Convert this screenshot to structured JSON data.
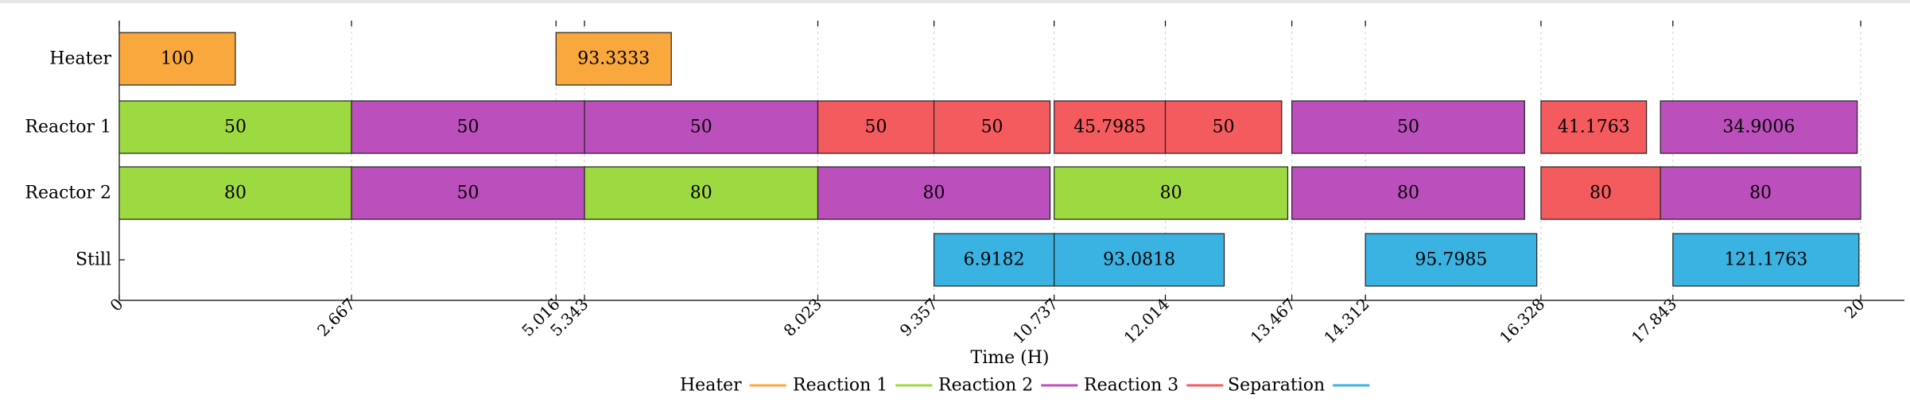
{
  "chart_data": {
    "type": "gantt",
    "xlabel": "Time (H)",
    "xlim": [
      0,
      20
    ],
    "xticks": [
      "0",
      "2.667",
      "5.016",
      "5.343",
      "8.023",
      "9.357",
      "10.737",
      "12.014",
      "13.467",
      "14.312",
      "16.328",
      "17.843",
      "20"
    ],
    "rows": [
      "Heater",
      "Reactor 1",
      "Reactor 2",
      "Still"
    ],
    "legend": [
      {
        "name": "Heater",
        "color": "#f9a83e"
      },
      {
        "name": "Reaction 1",
        "color": "#9dd940"
      },
      {
        "name": "Reaction 2",
        "color": "#bb4fbb"
      },
      {
        "name": "Reaction 3",
        "color": "#f45b5f"
      },
      {
        "name": "Separation",
        "color": "#3bb3e2"
      }
    ],
    "tasks": [
      {
        "row": "Heater",
        "task": "Heater",
        "start": 0,
        "end": 1.333,
        "label": "100"
      },
      {
        "row": "Heater",
        "task": "Heater",
        "start": 5.016,
        "end": 6.34,
        "label": "93.3333"
      },
      {
        "row": "Reactor 1",
        "task": "Reaction 1",
        "start": 0,
        "end": 2.667,
        "label": "50"
      },
      {
        "row": "Reactor 1",
        "task": "Reaction 2",
        "start": 2.667,
        "end": 5.343,
        "label": "50"
      },
      {
        "row": "Reactor 1",
        "task": "Reaction 2",
        "start": 5.343,
        "end": 8.023,
        "label": "50"
      },
      {
        "row": "Reactor 1",
        "task": "Reaction 3",
        "start": 8.023,
        "end": 9.357,
        "label": "50"
      },
      {
        "row": "Reactor 1",
        "task": "Reaction 3",
        "start": 9.357,
        "end": 10.69,
        "label": "50"
      },
      {
        "row": "Reactor 1",
        "task": "Reaction 3",
        "start": 10.737,
        "end": 12.014,
        "label": "45.7985"
      },
      {
        "row": "Reactor 1",
        "task": "Reaction 3",
        "start": 12.014,
        "end": 13.35,
        "label": "50"
      },
      {
        "row": "Reactor 1",
        "task": "Reaction 2",
        "start": 13.467,
        "end": 16.14,
        "label": "50"
      },
      {
        "row": "Reactor 1",
        "task": "Reaction 3",
        "start": 16.328,
        "end": 17.54,
        "label": "41.1763"
      },
      {
        "row": "Reactor 1",
        "task": "Reaction 2",
        "start": 17.7,
        "end": 19.96,
        "label": "34.9006"
      },
      {
        "row": "Reactor 2",
        "task": "Reaction 1",
        "start": 0,
        "end": 2.667,
        "label": "80"
      },
      {
        "row": "Reactor 2",
        "task": "Reaction 2",
        "start": 2.667,
        "end": 5.343,
        "label": "50"
      },
      {
        "row": "Reactor 2",
        "task": "Reaction 1",
        "start": 5.343,
        "end": 8.023,
        "label": "80"
      },
      {
        "row": "Reactor 2",
        "task": "Reaction 2",
        "start": 8.023,
        "end": 10.69,
        "label": "80"
      },
      {
        "row": "Reactor 2",
        "task": "Reaction 1",
        "start": 10.737,
        "end": 13.42,
        "label": "80"
      },
      {
        "row": "Reactor 2",
        "task": "Reaction 2",
        "start": 13.467,
        "end": 16.14,
        "label": "80"
      },
      {
        "row": "Reactor 2",
        "task": "Reaction 3",
        "start": 16.328,
        "end": 17.7,
        "label": "80"
      },
      {
        "row": "Reactor 2",
        "task": "Reaction 2",
        "start": 17.7,
        "end": 20,
        "label": "80"
      },
      {
        "row": "Still",
        "task": "Separation",
        "start": 9.357,
        "end": 10.737,
        "label": "6.9182"
      },
      {
        "row": "Still",
        "task": "Separation",
        "start": 10.737,
        "end": 12.69,
        "label": "93.0818"
      },
      {
        "row": "Still",
        "task": "Separation",
        "start": 14.312,
        "end": 16.28,
        "label": "95.7985"
      },
      {
        "row": "Still",
        "task": "Separation",
        "start": 17.843,
        "end": 19.98,
        "label": "121.1763"
      }
    ]
  }
}
